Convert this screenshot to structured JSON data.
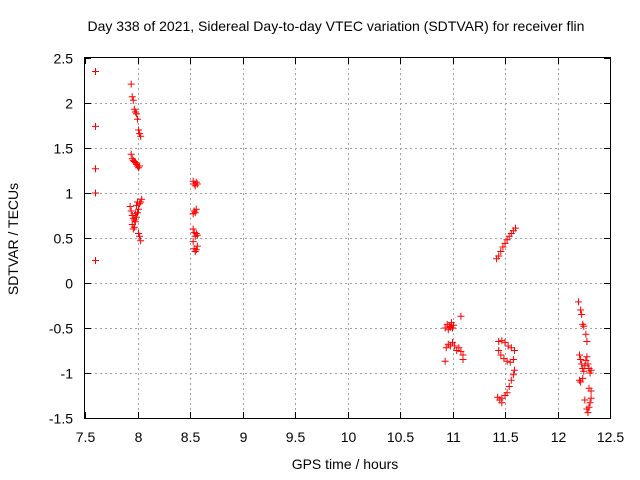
{
  "chart_data": {
    "type": "scatter",
    "title": "Day 338 of 2021, Sidereal Day-to-day VTEC variation (SDTVAR) for receiver flin",
    "xlabel": "GPS time / hours",
    "ylabel": "SDTVAR / TECUs",
    "xlim": [
      7.5,
      12.5
    ],
    "ylim": [
      -1.5,
      2.5
    ],
    "grid": true,
    "marker": "+",
    "color": "#ff0000",
    "xticks": [
      "7.5",
      "8",
      "8.5",
      "9",
      "9.5",
      "10",
      "10.5",
      "11",
      "11.5",
      "12",
      "12.5"
    ],
    "yticks": [
      "2.5",
      "2",
      "1.5",
      "1",
      "0.5",
      "0",
      "-0.5",
      "-1",
      "-1.5"
    ],
    "xtick_values": [
      7.5,
      8,
      8.5,
      9,
      9.5,
      10,
      10.5,
      11,
      11.5,
      12,
      12.5
    ],
    "ytick_values": [
      2.5,
      2,
      1.5,
      1,
      0.5,
      0,
      -0.5,
      -1,
      -1.5
    ],
    "points": [
      [
        7.6,
        2.35
      ],
      [
        7.6,
        1.74
      ],
      [
        7.6,
        1.27
      ],
      [
        7.6,
        1.0
      ],
      [
        7.6,
        0.25
      ],
      [
        7.94,
        2.21
      ],
      [
        7.95,
        2.07
      ],
      [
        7.96,
        2.03
      ],
      [
        7.97,
        1.93
      ],
      [
        7.98,
        1.9
      ],
      [
        7.99,
        1.88
      ],
      [
        8.0,
        1.82
      ],
      [
        8.01,
        1.7
      ],
      [
        8.02,
        1.66
      ],
      [
        8.03,
        1.63
      ],
      [
        7.94,
        1.43
      ],
      [
        7.95,
        1.38
      ],
      [
        7.96,
        1.36
      ],
      [
        7.97,
        1.35
      ],
      [
        7.98,
        1.34
      ],
      [
        7.99,
        1.32
      ],
      [
        8.0,
        1.3
      ],
      [
        8.01,
        1.28
      ],
      [
        8.02,
        1.3
      ],
      [
        7.93,
        0.85
      ],
      [
        7.94,
        0.8
      ],
      [
        7.95,
        0.75
      ],
      [
        7.96,
        0.72
      ],
      [
        7.97,
        0.7
      ],
      [
        7.98,
        0.68
      ],
      [
        7.99,
        0.73
      ],
      [
        8.0,
        0.78
      ],
      [
        8.01,
        0.82
      ],
      [
        8.02,
        0.88
      ],
      [
        8.03,
        0.9
      ],
      [
        8.04,
        0.93
      ],
      [
        7.95,
        0.65
      ],
      [
        7.96,
        0.6
      ],
      [
        7.97,
        0.62
      ],
      [
        7.98,
        0.77
      ],
      [
        7.99,
        0.86
      ],
      [
        8.0,
        0.9
      ],
      [
        8.01,
        0.55
      ],
      [
        8.02,
        0.52
      ],
      [
        8.03,
        0.47
      ],
      [
        8.53,
        1.13
      ],
      [
        8.54,
        1.1
      ],
      [
        8.55,
        1.08
      ],
      [
        8.56,
        1.12
      ],
      [
        8.57,
        1.1
      ],
      [
        8.53,
        0.77
      ],
      [
        8.54,
        0.8
      ],
      [
        8.55,
        0.78
      ],
      [
        8.56,
        0.82
      ],
      [
        8.53,
        0.6
      ],
      [
        8.54,
        0.56
      ],
      [
        8.55,
        0.52
      ],
      [
        8.56,
        0.55
      ],
      [
        8.57,
        0.53
      ],
      [
        8.53,
        0.46
      ],
      [
        8.54,
        0.38
      ],
      [
        8.55,
        0.35
      ],
      [
        8.56,
        0.37
      ],
      [
        8.57,
        0.41
      ],
      [
        10.93,
        -0.5
      ],
      [
        10.95,
        -0.46
      ],
      [
        10.97,
        -0.48
      ],
      [
        10.99,
        -0.44
      ],
      [
        11.0,
        -0.5
      ],
      [
        11.01,
        -0.47
      ],
      [
        10.96,
        -0.52
      ],
      [
        10.98,
        -0.49
      ],
      [
        10.94,
        -0.72
      ],
      [
        10.96,
        -0.68
      ],
      [
        10.98,
        -0.7
      ],
      [
        11.0,
        -0.66
      ],
      [
        11.02,
        -0.7
      ],
      [
        11.04,
        -0.75
      ],
      [
        11.06,
        -0.72
      ],
      [
        11.08,
        -0.76
      ],
      [
        11.1,
        -0.8
      ],
      [
        10.93,
        -0.87
      ],
      [
        11.08,
        -0.37
      ],
      [
        11.1,
        -0.85
      ],
      [
        11.42,
        0.27
      ],
      [
        11.44,
        0.3
      ],
      [
        11.46,
        0.35
      ],
      [
        11.48,
        0.4
      ],
      [
        11.5,
        0.44
      ],
      [
        11.52,
        0.48
      ],
      [
        11.54,
        0.52
      ],
      [
        11.56,
        0.55
      ],
      [
        11.58,
        0.58
      ],
      [
        11.6,
        0.61
      ],
      [
        11.44,
        -0.65
      ],
      [
        11.47,
        -0.64
      ],
      [
        11.5,
        -0.66
      ],
      [
        11.53,
        -0.7
      ],
      [
        11.56,
        -0.72
      ],
      [
        11.59,
        -0.75
      ],
      [
        11.58,
        -0.85
      ],
      [
        11.55,
        -0.88
      ],
      [
        11.52,
        -0.87
      ],
      [
        11.49,
        -0.84
      ],
      [
        11.46,
        -0.8
      ],
      [
        11.44,
        -0.75
      ],
      [
        11.43,
        -1.27
      ],
      [
        11.45,
        -1.3
      ],
      [
        11.47,
        -1.28
      ],
      [
        11.5,
        -1.25
      ],
      [
        11.52,
        -1.22
      ],
      [
        11.54,
        -1.15
      ],
      [
        11.56,
        -1.08
      ],
      [
        11.58,
        -1.02
      ],
      [
        11.59,
        -0.97
      ],
      [
        11.47,
        -1.33
      ],
      [
        12.2,
        -0.21
      ],
      [
        12.22,
        -0.3
      ],
      [
        12.23,
        -0.35
      ],
      [
        12.24,
        -0.46
      ],
      [
        12.25,
        -0.48
      ],
      [
        12.27,
        -0.57
      ],
      [
        12.28,
        -0.65
      ],
      [
        12.21,
        -0.8
      ],
      [
        12.22,
        -0.85
      ],
      [
        12.23,
        -0.9
      ],
      [
        12.24,
        -0.95
      ],
      [
        12.25,
        -0.98
      ],
      [
        12.26,
        -0.92
      ],
      [
        12.27,
        -0.86
      ],
      [
        12.28,
        -0.82
      ],
      [
        12.29,
        -0.9
      ],
      [
        12.3,
        -0.95
      ],
      [
        12.31,
        -1.0
      ],
      [
        12.32,
        -0.97
      ],
      [
        12.21,
        -1.08
      ],
      [
        12.22,
        -1.1
      ],
      [
        12.24,
        -1.06
      ],
      [
        12.3,
        -1.17
      ],
      [
        12.32,
        -1.2
      ],
      [
        12.26,
        -1.3
      ],
      [
        12.28,
        -1.4
      ],
      [
        12.29,
        -1.44
      ],
      [
        12.3,
        -1.38
      ],
      [
        12.31,
        -1.33
      ],
      [
        12.32,
        -1.28
      ]
    ]
  }
}
